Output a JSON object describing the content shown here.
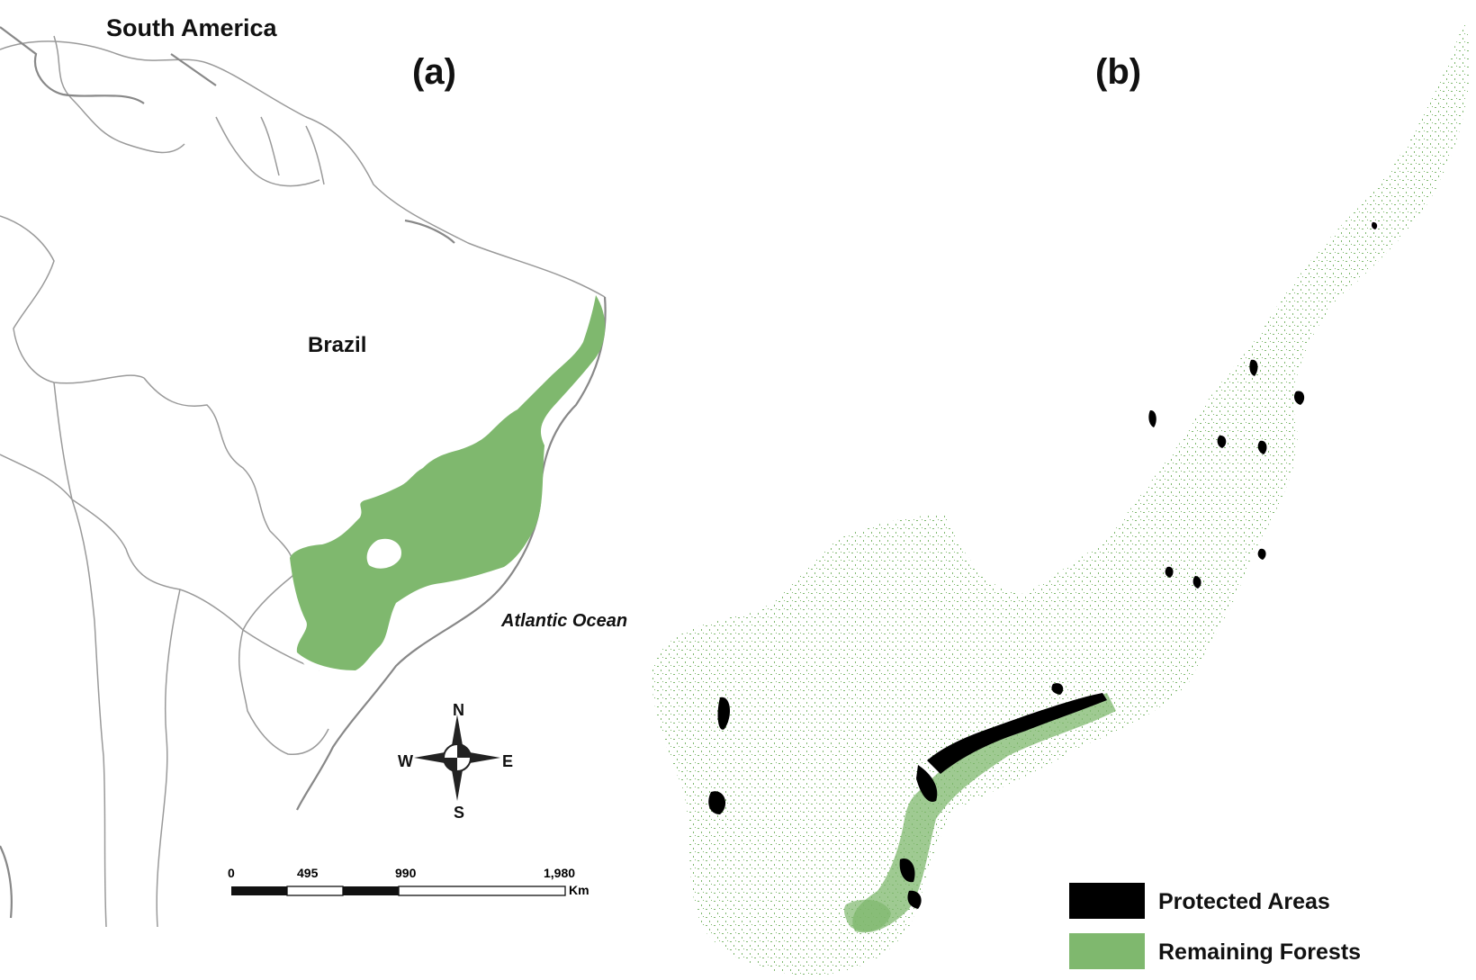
{
  "panel_a": {
    "continent_label": "South America",
    "panel_label": "(a)",
    "country_label": "Brazil",
    "ocean_label": "Atlantic Ocean",
    "compass": {
      "north": "N",
      "south": "S",
      "west": "W",
      "east": "E"
    },
    "scale_bar": {
      "ticks": [
        "0",
        "495",
        "990",
        "1,980"
      ],
      "unit": "Km"
    }
  },
  "panel_b": {
    "panel_label": "(b)",
    "legend": [
      {
        "label": "Protected Areas",
        "color": "#000000"
      },
      {
        "label": "Remaining Forests",
        "color": "#7fb86e"
      }
    ]
  },
  "colors": {
    "forest": "#7fb86e",
    "protected": "#000000",
    "border": "#9a9a9a"
  }
}
